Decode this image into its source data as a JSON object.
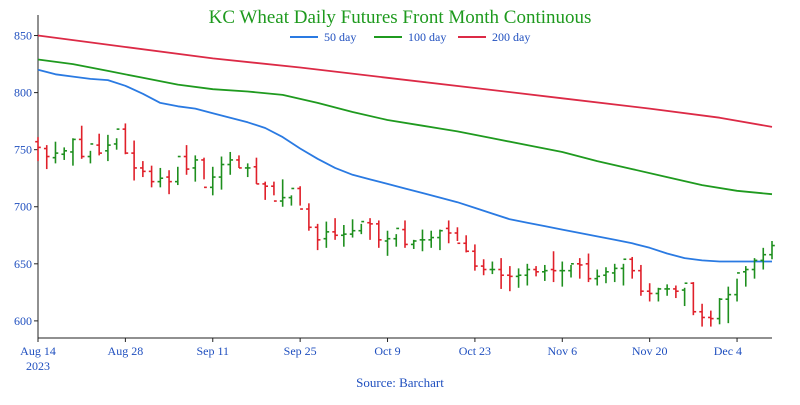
{
  "colors": {
    "title": "#1e9a1e",
    "axis_text": "#1f4fbf",
    "source": "#1f4fbf",
    "up_bar": "#1e8f1e",
    "down_bar": "#e0202a",
    "ma50": "#2a7ae2",
    "ma100": "#1f9a1f",
    "ma200": "#dc2a46",
    "axis": "#222222"
  },
  "chart_data": {
    "type": "line",
    "title": "KC Wheat Daily Futures Front Month Continuous",
    "source": "Source: Barchart",
    "xlabel": "",
    "ylabel": "",
    "ylim": [
      585,
      868
    ],
    "yticks": [
      600,
      650,
      700,
      750,
      800,
      850
    ],
    "xtick_labels": [
      "Aug 14",
      "Aug 28",
      "Sep 11",
      "Sep 25",
      "Oct 9",
      "Oct 23",
      "Nov 6",
      "Nov 20",
      "Dec 4"
    ],
    "xtick_year": "2023",
    "legend_position": "top-center",
    "series": [
      {
        "name": "50 day",
        "key": "ma50",
        "x": [
          0,
          2,
          4,
          6,
          8,
          10,
          12,
          14,
          16,
          18,
          20,
          22,
          24,
          26,
          28,
          30,
          32,
          34,
          36,
          38,
          40,
          42,
          44,
          46,
          48,
          50,
          52,
          54,
          56,
          58,
          60,
          62,
          64,
          66,
          68,
          70,
          72,
          74,
          76,
          78,
          80,
          82,
          84
        ],
        "values": [
          820,
          816,
          814,
          812,
          811,
          806,
          799,
          791,
          788,
          786,
          782,
          778,
          774,
          769,
          761,
          751,
          742,
          734,
          728,
          724,
          720,
          716,
          712,
          708,
          704,
          699,
          694,
          689,
          686,
          683,
          680,
          677,
          674,
          671,
          668,
          664,
          659,
          655,
          653,
          652,
          652,
          652,
          652
        ]
      },
      {
        "name": "100 day",
        "key": "ma100",
        "x": [
          0,
          4,
          8,
          12,
          16,
          20,
          24,
          28,
          32,
          36,
          40,
          44,
          48,
          52,
          56,
          60,
          64,
          68,
          72,
          76,
          80,
          84
        ],
        "values": [
          829,
          825,
          819,
          813,
          807,
          803,
          801,
          798,
          791,
          783,
          776,
          771,
          766,
          760,
          754,
          748,
          740,
          733,
          726,
          719,
          714,
          711
        ]
      },
      {
        "name": "200 day",
        "key": "ma200",
        "x": [
          0,
          10,
          20,
          30,
          40,
          50,
          60,
          70,
          78,
          84
        ],
        "values": [
          850,
          840,
          830,
          822,
          813,
          804,
          795,
          786,
          778,
          770
        ]
      }
    ],
    "ohlc": {
      "x": [
        0,
        1,
        2,
        3,
        4,
        5,
        6,
        7,
        8,
        9,
        10,
        11,
        12,
        13,
        14,
        15,
        16,
        17,
        18,
        19,
        20,
        21,
        22,
        23,
        24,
        25,
        26,
        27,
        28,
        29,
        30,
        31,
        32,
        33,
        34,
        35,
        36,
        37,
        38,
        39,
        40,
        41,
        42,
        43,
        44,
        45,
        46,
        47,
        48,
        49,
        50,
        51,
        52,
        53,
        54,
        55,
        56,
        57,
        58,
        59,
        60,
        61,
        62,
        63,
        64,
        65,
        66,
        67,
        68,
        69,
        70,
        71,
        72,
        73,
        74,
        75,
        76,
        77,
        78,
        79,
        80,
        81,
        82,
        83,
        84
      ],
      "open": [
        757,
        751,
        743,
        746,
        748,
        759,
        744,
        754,
        749,
        755,
        768,
        747,
        734,
        731,
        722,
        726,
        722,
        744,
        734,
        741,
        717,
        726,
        737,
        741,
        734,
        735,
        720,
        718,
        705,
        708,
        716,
        698,
        682,
        672,
        678,
        675,
        676,
        679,
        686,
        685,
        670,
        672,
        680,
        667,
        671,
        671,
        673,
        681,
        677,
        668,
        661,
        648,
        645,
        645,
        640,
        639,
        640,
        645,
        643,
        645,
        644,
        644,
        650,
        650,
        637,
        640,
        642,
        646,
        654,
        644,
        626,
        624,
        628,
        628,
        627,
        633,
        608,
        603,
        602,
        619,
        623,
        643,
        645,
        653,
        658
      ],
      "high": [
        761,
        754,
        757,
        752,
        760,
        771,
        749,
        764,
        763,
        760,
        773,
        758,
        740,
        736,
        734,
        732,
        735,
        754,
        745,
        743,
        735,
        744,
        748,
        745,
        738,
        743,
        722,
        722,
        724,
        710,
        718,
        703,
        685,
        687,
        690,
        684,
        689,
        685,
        690,
        688,
        679,
        676,
        688,
        671,
        680,
        679,
        680,
        688,
        682,
        675,
        667,
        654,
        652,
        655,
        648,
        646,
        650,
        648,
        649,
        661,
        652,
        649,
        655,
        659,
        645,
        647,
        650,
        650,
        656,
        649,
        633,
        629,
        632,
        631,
        629,
        634,
        615,
        609,
        620,
        630,
        637,
        648,
        655,
        664,
        670
      ],
      "low": [
        740,
        733,
        738,
        741,
        736,
        742,
        738,
        745,
        740,
        750,
        746,
        723,
        726,
        717,
        717,
        711,
        719,
        728,
        722,
        724,
        710,
        715,
        728,
        734,
        726,
        720,
        706,
        710,
        700,
        701,
        701,
        679,
        662,
        664,
        671,
        665,
        673,
        676,
        671,
        664,
        657,
        665,
        664,
        663,
        661,
        664,
        662,
        668,
        670,
        660,
        644,
        640,
        641,
        628,
        626,
        629,
        631,
        639,
        635,
        634,
        630,
        638,
        637,
        634,
        631,
        633,
        634,
        631,
        637,
        622,
        617,
        617,
        622,
        620,
        613,
        605,
        595,
        595,
        597,
        598,
        617,
        630,
        637,
        645,
        654
      ],
      "close": [
        752,
        744,
        747,
        749,
        759,
        744,
        755,
        747,
        754,
        768,
        747,
        734,
        731,
        722,
        725,
        722,
        744,
        733,
        741,
        717,
        726,
        737,
        741,
        734,
        734,
        720,
        718,
        705,
        708,
        716,
        698,
        682,
        671,
        678,
        675,
        676,
        679,
        687,
        685,
        671,
        672,
        681,
        667,
        670,
        671,
        673,
        679,
        677,
        668,
        661,
        648,
        645,
        645,
        640,
        639,
        640,
        645,
        643,
        644,
        644,
        644,
        650,
        649,
        637,
        639,
        643,
        646,
        654,
        644,
        626,
        624,
        628,
        628,
        626,
        633,
        608,
        603,
        602,
        619,
        623,
        642,
        645,
        653,
        658,
        666
      ]
    }
  }
}
